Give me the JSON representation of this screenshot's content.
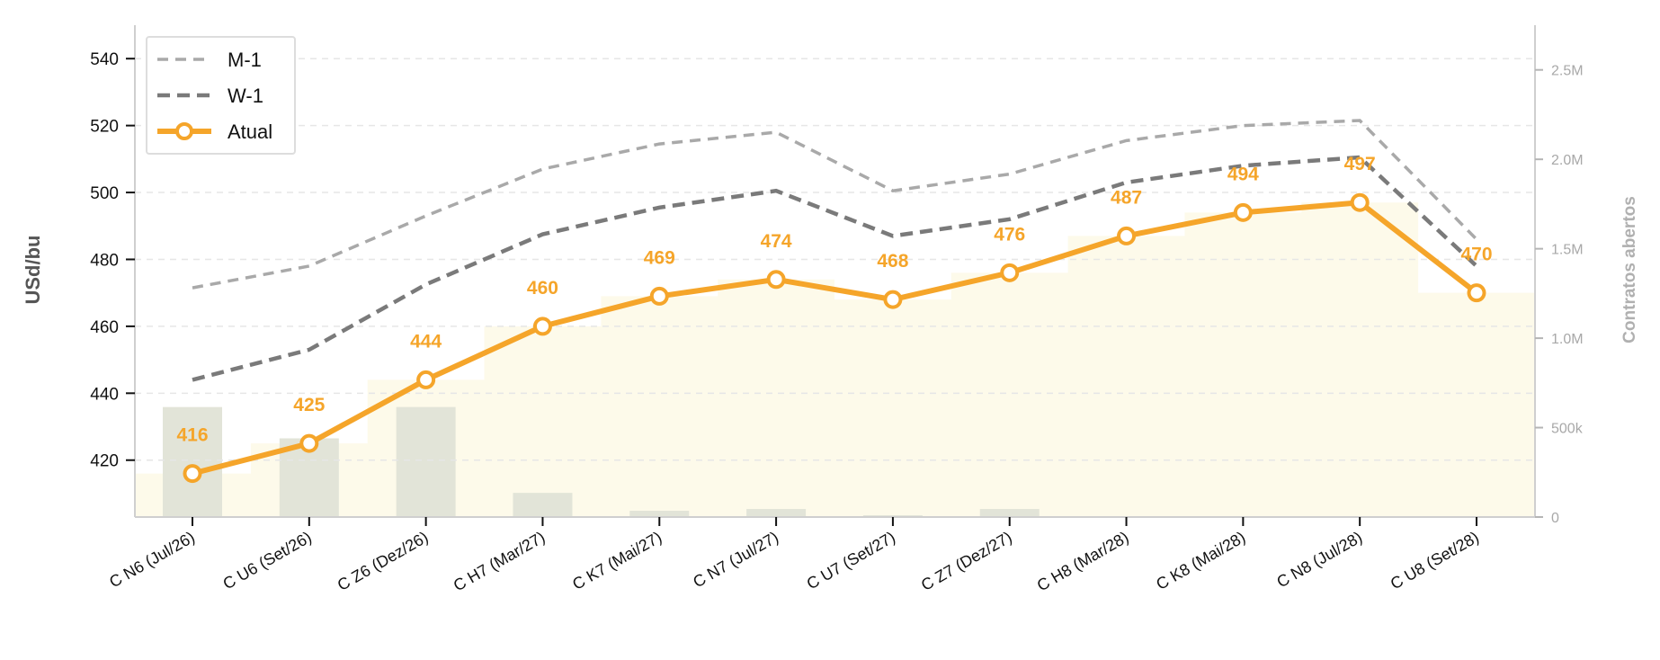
{
  "chart_data": {
    "type": "line",
    "title": "",
    "xlabel": "",
    "ylabel": "USd/bu",
    "y2label": "Contratos abertos",
    "ylim": [
      403,
      550
    ],
    "y_ticks": [
      420,
      440,
      460,
      480,
      500,
      520,
      540
    ],
    "y2lim": [
      0,
      2750000
    ],
    "y2_ticks": [
      0,
      500000,
      1000000,
      1500000,
      2000000,
      2500000
    ],
    "y2_tick_labels": [
      "0",
      "500k",
      "1.0M",
      "1.5M",
      "2.0M",
      "2.5M"
    ],
    "grid": true,
    "legend_position": "top-left",
    "categories": [
      "C N6 (Jul/26)",
      "C U6 (Set/26)",
      "C Z6 (Dez/26)",
      "C H7 (Mar/27)",
      "C K7 (Mai/27)",
      "C N7 (Jul/27)",
      "C U7 (Set/27)",
      "C Z7 (Dez/27)",
      "C H8 (Mar/28)",
      "C K8 (Mai/28)",
      "C N8 (Jul/28)",
      "C U8 (Set/28)"
    ],
    "series": [
      {
        "name": "M-1",
        "style": "dashed-light",
        "color": "#a9a9a9",
        "values": [
          471.5,
          478,
          493,
          507,
          514.5,
          518,
          500.5,
          505.5,
          515.5,
          520,
          521.5,
          486
        ]
      },
      {
        "name": "W-1",
        "style": "dashed-dark",
        "color": "#7a7a7a",
        "values": [
          444,
          453,
          472.5,
          487.5,
          495.5,
          500.5,
          487,
          492,
          503,
          508,
          510.5,
          478
        ]
      },
      {
        "name": "Atual",
        "style": "solid-markers",
        "color": "#f5a52a",
        "values": [
          416,
          425,
          444,
          460,
          469,
          474,
          468,
          476,
          487,
          494,
          497,
          470
        ],
        "labels": [
          "416",
          "425",
          "444",
          "460",
          "469",
          "474",
          "468",
          "476",
          "487",
          "494",
          "497",
          "470"
        ]
      }
    ],
    "open_interest": {
      "color": "#e2e4d8",
      "values": [
        615000,
        440000,
        615000,
        135000,
        35000,
        45000,
        10000,
        45000,
        5000,
        5000,
        5000,
        5000
      ]
    },
    "area_fill_color": "#fdfaea"
  }
}
